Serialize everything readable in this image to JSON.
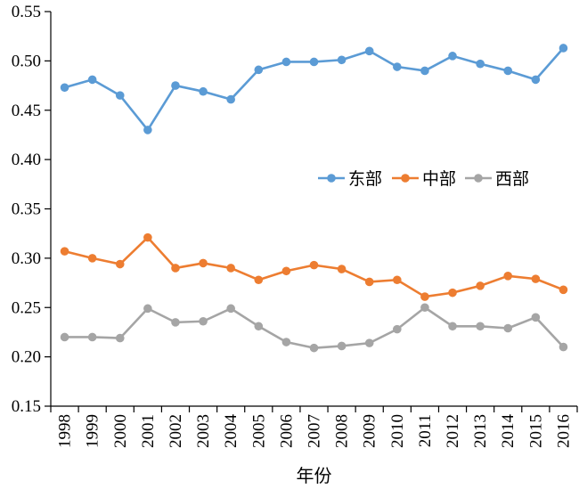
{
  "chart_data": {
    "type": "line",
    "title": "",
    "xlabel": "年份",
    "ylabel": "",
    "ylim": [
      0.15,
      0.55
    ],
    "yticks": [
      "0.15",
      "0.20",
      "0.25",
      "0.30",
      "0.35",
      "0.40",
      "0.45",
      "0.50",
      "0.55"
    ],
    "x": [
      "1998",
      "1999",
      "2000",
      "2001",
      "2002",
      "2003",
      "2004",
      "2005",
      "2006",
      "2007",
      "2008",
      "2009",
      "2010",
      "2011",
      "2012",
      "2013",
      "2014",
      "2015",
      "2016"
    ],
    "grid": false,
    "legend_position": "center-right",
    "series": [
      {
        "name": "东部",
        "color": "#5b9bd5",
        "values": [
          0.473,
          0.481,
          0.465,
          0.43,
          0.475,
          0.469,
          0.461,
          0.491,
          0.499,
          0.499,
          0.501,
          0.51,
          0.494,
          0.49,
          0.505,
          0.497,
          0.49,
          0.481,
          0.513
        ]
      },
      {
        "name": "中部",
        "color": "#ed7d31",
        "values": [
          0.307,
          0.3,
          0.294,
          0.321,
          0.29,
          0.295,
          0.29,
          0.278,
          0.287,
          0.293,
          0.289,
          0.276,
          0.278,
          0.261,
          0.265,
          0.272,
          0.282,
          0.279,
          0.268
        ]
      },
      {
        "name": "西部",
        "color": "#a5a5a5",
        "values": [
          0.22,
          0.22,
          0.219,
          0.249,
          0.235,
          0.236,
          0.249,
          0.231,
          0.215,
          0.209,
          0.211,
          0.214,
          0.228,
          0.25,
          0.231,
          0.231,
          0.229,
          0.24,
          0.21
        ]
      }
    ]
  }
}
